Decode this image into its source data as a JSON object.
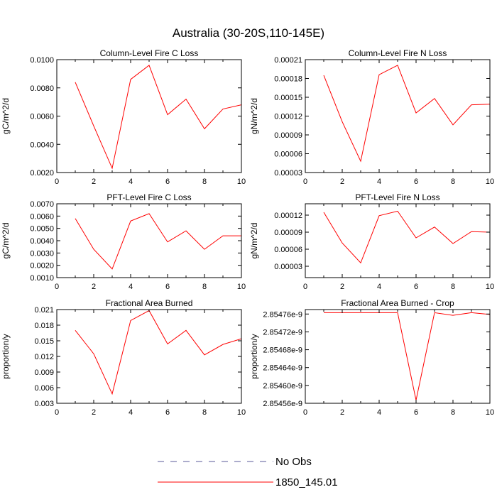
{
  "figure_title": "Australia (30-20S,110-145E)",
  "chart_data": [
    {
      "type": "line",
      "title": "Column-Level Fire C Loss",
      "xlabel": "",
      "ylabel": "gC/m^2/d",
      "xlim": [
        0,
        10
      ],
      "ylim": [
        0.002,
        0.01
      ],
      "xticks": [
        0,
        2,
        4,
        6,
        8,
        10
      ],
      "xtick_labels": [
        "0",
        "2",
        "4",
        "6",
        "8",
        "10"
      ],
      "yticks": [
        0.002,
        0.004,
        0.006,
        0.008,
        0.01
      ],
      "ytick_labels": [
        "0.0020",
        "0.0040",
        "0.0060",
        "0.0080",
        "0.0100"
      ],
      "series": [
        {
          "name": "1850_145.01",
          "color": "#ff0000",
          "x": [
            1,
            2,
            3,
            4,
            5,
            6,
            7,
            8,
            9,
            10
          ],
          "y": [
            0.0084,
            0.0053,
            0.0023,
            0.0086,
            0.0096,
            0.0061,
            0.0072,
            0.0051,
            0.0065,
            0.0068
          ]
        }
      ]
    },
    {
      "type": "line",
      "title": "Column-Level Fire N Loss",
      "xlabel": "",
      "ylabel": "gN/m^2/d",
      "xlim": [
        0,
        10
      ],
      "ylim": [
        3e-05,
        0.00021
      ],
      "xticks": [
        0,
        2,
        4,
        6,
        8,
        10
      ],
      "xtick_labels": [
        "0",
        "2",
        "4",
        "6",
        "8",
        "10"
      ],
      "yticks": [
        3e-05,
        6e-05,
        9e-05,
        0.00012,
        0.00015,
        0.00018,
        0.00021
      ],
      "ytick_labels": [
        "0.00003",
        "0.00006",
        "0.00009",
        "0.00012",
        "0.00015",
        "0.00018",
        "0.00021"
      ],
      "series": [
        {
          "name": "1850_145.01",
          "color": "#ff0000",
          "x": [
            1,
            2,
            3,
            4,
            5,
            6,
            7,
            8,
            9,
            10
          ],
          "y": [
            0.000185,
            0.000111,
            4.8e-05,
            0.000186,
            0.000201,
            0.000125,
            0.000148,
            0.000106,
            0.000138,
            0.000139
          ]
        }
      ]
    },
    {
      "type": "line",
      "title": "PFT-Level Fire C Loss",
      "xlabel": "",
      "ylabel": "gC/m^2/d",
      "xlim": [
        0,
        10
      ],
      "ylim": [
        0.001,
        0.007
      ],
      "xticks": [
        0,
        2,
        4,
        6,
        8,
        10
      ],
      "xtick_labels": [
        "0",
        "2",
        "4",
        "6",
        "8",
        "10"
      ],
      "yticks": [
        0.001,
        0.002,
        0.003,
        0.004,
        0.005,
        0.006,
        0.007
      ],
      "ytick_labels": [
        "0.0010",
        "0.0020",
        "0.0030",
        "0.0040",
        "0.0050",
        "0.0060",
        "0.0070"
      ],
      "series": [
        {
          "name": "1850_145.01",
          "color": "#ff0000",
          "x": [
            1,
            2,
            3,
            4,
            5,
            6,
            7,
            8,
            9,
            10
          ],
          "y": [
            0.0058,
            0.0033,
            0.0017,
            0.0056,
            0.0062,
            0.0039,
            0.0048,
            0.0033,
            0.0044,
            0.0044
          ]
        }
      ]
    },
    {
      "type": "line",
      "title": "PFT-Level Fire N Loss",
      "xlabel": "",
      "ylabel": "gN/m^2/d",
      "xlim": [
        0,
        10
      ],
      "ylim": [
        1e-05,
        0.00014
      ],
      "xticks": [
        0,
        2,
        4,
        6,
        8,
        10
      ],
      "xtick_labels": [
        "0",
        "2",
        "4",
        "6",
        "8",
        "10"
      ],
      "yticks": [
        3e-05,
        6e-05,
        9e-05,
        0.00012
      ],
      "ytick_labels": [
        "0.00003",
        "0.00006",
        "0.00009",
        "0.00012"
      ],
      "series": [
        {
          "name": "1850_145.01",
          "color": "#ff0000",
          "x": [
            1,
            2,
            3,
            4,
            5,
            6,
            7,
            8,
            9,
            10
          ],
          "y": [
            0.000125,
            7.1e-05,
            3.6e-05,
            0.000119,
            0.000127,
            8e-05,
            9.9e-05,
            7e-05,
            9.1e-05,
            9e-05
          ]
        }
      ]
    },
    {
      "type": "line",
      "title": "Fractional Area Burned",
      "xlabel": "",
      "ylabel": "proportion/y",
      "xlim": [
        0,
        10
      ],
      "ylim": [
        0.003,
        0.021
      ],
      "xticks": [
        0,
        2,
        4,
        6,
        8,
        10
      ],
      "xtick_labels": [
        "0",
        "2",
        "4",
        "6",
        "8",
        "10"
      ],
      "yticks": [
        0.003,
        0.006,
        0.009,
        0.012,
        0.015,
        0.018,
        0.021
      ],
      "ytick_labels": [
        "0.003",
        "0.006",
        "0.009",
        "0.012",
        "0.015",
        "0.018",
        "0.021"
      ],
      "series": [
        {
          "name": "1850_145.01",
          "color": "#ff0000",
          "x": [
            1,
            2,
            3,
            4,
            5,
            6,
            7,
            8,
            9,
            10
          ],
          "y": [
            0.017,
            0.0125,
            0.0048,
            0.0189,
            0.0208,
            0.0144,
            0.017,
            0.0123,
            0.0143,
            0.0154
          ]
        }
      ]
    },
    {
      "type": "line",
      "title": "Fractional Area Burned - Crop",
      "xlabel": "",
      "ylabel": "proportion/y",
      "xlim": [
        0,
        10
      ],
      "ylim": [
        2.85456e-09,
        2.85477e-09
      ],
      "xticks": [
        0,
        2,
        4,
        6,
        8,
        10
      ],
      "xtick_labels": [
        "0",
        "2",
        "4",
        "6",
        "8",
        "10"
      ],
      "yticks": [
        2.85456e-09,
        2.8546e-09,
        2.85464e-09,
        2.85468e-09,
        2.85472e-09,
        2.85476e-09
      ],
      "ytick_labels": [
        "2.85456e-9",
        "2.85460e-9",
        "2.85464e-9",
        "2.85468e-9",
        "2.85472e-9",
        "2.85476e-9"
      ],
      "series": [
        {
          "name": "1850_145.01",
          "color": "#ff0000",
          "x": [
            1,
            2,
            3,
            4,
            5,
            6,
            7,
            8,
            9,
            10
          ],
          "y": [
            2.854763e-09,
            2.854763e-09,
            2.854763e-09,
            2.854763e-09,
            2.854763e-09,
            2.854567e-09,
            2.854763e-09,
            2.854757e-09,
            2.854763e-09,
            2.854759e-09
          ]
        }
      ]
    }
  ],
  "legend": {
    "placement": "bottom-center",
    "entries": [
      {
        "label": "No Obs",
        "color": "#5a5a9a",
        "style": "dashed"
      },
      {
        "label": "1850_145.01",
        "color": "#ff0000",
        "style": "solid"
      }
    ]
  }
}
